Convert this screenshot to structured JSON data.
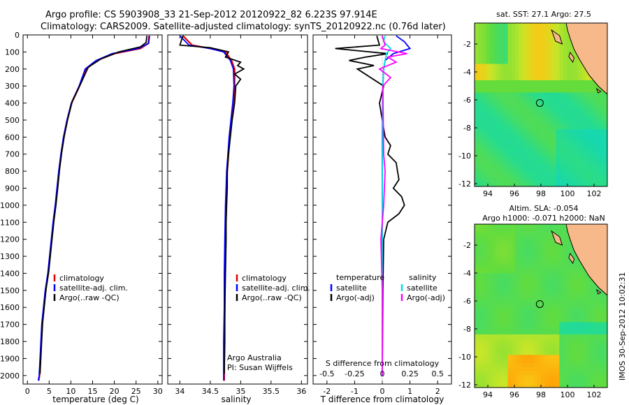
{
  "title_line1": "Argo profile: CS 5903908_33 21-Sep-2012 20120922_82 6.223S 97.914E",
  "title_line2": "Climatology: CARS2009. Satellite-adjusted climatology: synTS_20120922.nc (0.76d later)",
  "side_label": "IMOS 30-Sep-2012 10:02:31",
  "colors": {
    "climatology": "#e00000",
    "satellite": "#0000ff",
    "argo": "#000000",
    "sat_sal": "#00e0e0",
    "argo_sal": "#ff00ff",
    "land": "#f7b98a",
    "circle": "#000000"
  },
  "chart_data": [
    {
      "id": "temperature",
      "type": "line",
      "xlabel": "temperature (deg C)",
      "xlim": [
        -1,
        31
      ],
      "xticks": [
        0,
        5,
        10,
        15,
        20,
        25,
        30
      ],
      "ylim": [
        2050,
        0
      ],
      "yticks": [
        0,
        100,
        200,
        300,
        400,
        500,
        600,
        700,
        800,
        900,
        1000,
        1100,
        1200,
        1300,
        1400,
        1500,
        1600,
        1700,
        1800,
        1900,
        2000
      ],
      "legend": [
        "climatology",
        "satellite-adj. clim.",
        "Argo(..raw -QC)"
      ],
      "series": [
        {
          "name": "climatology",
          "color": "#e00000",
          "x": [
            28.0,
            27.8,
            26,
            20,
            16,
            13.5,
            12.0,
            10.2,
            9.2,
            8.4,
            7.8,
            7.3,
            6.9,
            6.5,
            6.0,
            5.6,
            4.8,
            4.2,
            3.8,
            3.4,
            3.2,
            3.0,
            2.8,
            2.6
          ],
          "y": [
            5,
            50,
            80,
            110,
            150,
            200,
            300,
            400,
            500,
            600,
            700,
            800,
            900,
            1000,
            1100,
            1200,
            1400,
            1500,
            1600,
            1700,
            1800,
            1900,
            2000,
            2030
          ]
        },
        {
          "name": "satellite-adj. clim.",
          "color": "#0000ff",
          "x": [
            28.1,
            27.9,
            25.5,
            19.5,
            15.8,
            13.3,
            11.9,
            10.1,
            9.1,
            8.3,
            7.7,
            7.2,
            6.8,
            6.4,
            5.9,
            5.5,
            4.7,
            4.1,
            3.7,
            3.3,
            3.1,
            2.9,
            2.7,
            2.5
          ],
          "y": [
            5,
            50,
            80,
            110,
            150,
            200,
            300,
            400,
            500,
            600,
            700,
            800,
            900,
            1000,
            1100,
            1200,
            1400,
            1500,
            1600,
            1700,
            1800,
            1900,
            2000,
            2030
          ]
        },
        {
          "name": "Argo(..raw -QC)",
          "color": "#000000",
          "x": [
            27.5,
            27.3,
            26,
            21,
            17,
            14,
            12.2,
            10.3,
            9.3,
            8.5,
            7.9,
            7.4,
            7.0,
            6.6,
            6.1,
            5.7,
            4.9,
            4.3,
            3.9,
            3.5,
            3.3,
            3.1,
            2.9
          ],
          "y": [
            5,
            45,
            70,
            100,
            140,
            190,
            290,
            390,
            490,
            590,
            690,
            790,
            890,
            990,
            1090,
            1190,
            1390,
            1490,
            1590,
            1690,
            1790,
            1890,
            1990
          ]
        }
      ]
    },
    {
      "id": "salinity",
      "type": "line",
      "xlabel": "salinity",
      "xlim": [
        33.8,
        36.1
      ],
      "xticks": [
        34,
        34.5,
        35,
        35.5,
        36
      ],
      "ylim": [
        2050,
        0
      ],
      "legend": [
        "climatology",
        "satellite-adj. clim.",
        "Argo(..raw -QC)"
      ],
      "annotation": [
        "Argo Australia",
        "PI: Susan Wijffels"
      ],
      "series": [
        {
          "name": "climatology",
          "color": "#e00000",
          "x": [
            34.05,
            34.2,
            34.5,
            34.75,
            34.85,
            34.9,
            34.9,
            34.88,
            34.85,
            34.82,
            34.8,
            34.78,
            34.77,
            34.76,
            34.75,
            34.74,
            34.74,
            34.73,
            34.73,
            34.73,
            34.73
          ],
          "y": [
            5,
            60,
            80,
            100,
            150,
            200,
            300,
            400,
            500,
            600,
            700,
            800,
            900,
            1000,
            1200,
            1400,
            1600,
            1800,
            1900,
            2000,
            2030
          ]
        },
        {
          "name": "satellite-adj. clim.",
          "color": "#0000ff",
          "x": [
            34.0,
            34.15,
            34.5,
            34.72,
            34.83,
            34.88,
            34.89,
            34.87,
            34.84,
            34.81,
            34.79,
            34.77,
            34.76,
            34.75,
            34.74,
            34.73,
            34.73,
            34.72,
            34.72,
            34.72,
            34.72
          ],
          "y": [
            5,
            60,
            80,
            100,
            150,
            200,
            300,
            400,
            500,
            600,
            700,
            800,
            900,
            1000,
            1200,
            1400,
            1600,
            1800,
            1900,
            2000,
            2030
          ]
        },
        {
          "name": "Argo(..raw -QC)",
          "color": "#000000",
          "x": [
            34.05,
            34.0,
            34.5,
            34.8,
            34.75,
            35.0,
            34.95,
            35.05,
            34.9,
            35.0,
            34.92,
            34.9,
            34.86,
            34.83,
            34.8,
            34.78,
            34.78,
            34.77,
            34.76,
            34.76,
            34.75,
            34.74,
            34.74,
            34.73
          ],
          "y": [
            5,
            60,
            75,
            100,
            130,
            160,
            180,
            200,
            230,
            260,
            300,
            400,
            500,
            600,
            700,
            800,
            900,
            1000,
            1100,
            1200,
            1400,
            1600,
            1800,
            1990
          ]
        }
      ]
    },
    {
      "id": "difference",
      "type": "line",
      "xlabel": "T difference from climatology",
      "x2label": "S difference from climatology",
      "xlim": [
        -2.5,
        2.5
      ],
      "xticks": [
        -2,
        -1,
        0,
        1,
        2
      ],
      "x2ticks": [
        -0.5,
        -0.25,
        0,
        0.25,
        0.5
      ],
      "ylim": [
        2050,
        0
      ],
      "legend_temperature": [
        "temperature",
        "satellite",
        "Argo(-adj)"
      ],
      "legend_salinity": [
        "salinity",
        "satellite",
        "Argo(-adj)"
      ],
      "series": [
        {
          "name": "temperature satellite",
          "color": "#0000ff",
          "x": [
            0.5,
            0.8,
            1.0,
            0.4,
            0.1,
            0.05,
            0.02,
            0.01,
            0,
            0,
            0,
            0,
            0
          ],
          "y": [
            5,
            40,
            80,
            110,
            150,
            200,
            300,
            400,
            600,
            800,
            1000,
            1500,
            2000
          ]
        },
        {
          "name": "temperature Argo(-adj)",
          "color": "#000000",
          "x": [
            -0.2,
            -0.1,
            -1.7,
            0.2,
            -0.6,
            -1.2,
            -0.3,
            -0.9,
            0.05,
            -0.1,
            0.1,
            0.3,
            0.2,
            0.5,
            0.6,
            0.4,
            0.7,
            0.8,
            0.6,
            0.2,
            0.05,
            0.02,
            0
          ],
          "y": [
            5,
            60,
            80,
            110,
            130,
            150,
            180,
            200,
            300,
            400,
            600,
            650,
            700,
            750,
            850,
            900,
            950,
            1000,
            1050,
            1100,
            1200,
            1500,
            2000
          ]
        },
        {
          "name": "salinity satellite",
          "color": "#00e0e0",
          "x": [
            0.1,
            0.05,
            0.3,
            0.15,
            0.1,
            0.05,
            0.02,
            0.01,
            0,
            0,
            0
          ],
          "y": [
            5,
            40,
            80,
            110,
            150,
            200,
            300,
            500,
            1000,
            1500,
            2000
          ]
        },
        {
          "name": "salinity Argo(-adj)",
          "color": "#ff00ff",
          "x": [
            0.0,
            0.1,
            -0.05,
            0.9,
            0.2,
            0.5,
            -0.1,
            0.3,
            0.02,
            0.05,
            0.1,
            0.05,
            -0.05,
            0,
            0
          ],
          "y": [
            5,
            60,
            80,
            110,
            130,
            160,
            200,
            250,
            300,
            700,
            800,
            1000,
            1200,
            1500,
            2000
          ]
        }
      ]
    },
    {
      "id": "sst_map",
      "type": "heatmap",
      "title": "sat. SST: 27.1  Argo: 27.5",
      "xlim": [
        93,
        103
      ],
      "xticks": [
        94,
        96,
        98,
        100,
        102
      ],
      "ylim": [
        -12.2,
        -0.5
      ],
      "yticks": [
        -2,
        -4,
        -6,
        -8,
        -10,
        -12
      ],
      "marker": {
        "lon": 97.914,
        "lat": -6.223
      }
    },
    {
      "id": "sla_map",
      "type": "heatmap",
      "title_line1": "Altim. SLA: -0.054",
      "title_line2": "Argo h1000: -0.071  h2000: NaN",
      "xlim": [
        93,
        103
      ],
      "xticks": [
        94,
        96,
        98,
        100,
        102
      ],
      "ylim": [
        -12.2,
        -0.5
      ],
      "yticks": [
        -2,
        -4,
        -6,
        -8,
        -10,
        -12
      ],
      "marker": {
        "lon": 97.914,
        "lat": -6.223
      }
    }
  ]
}
